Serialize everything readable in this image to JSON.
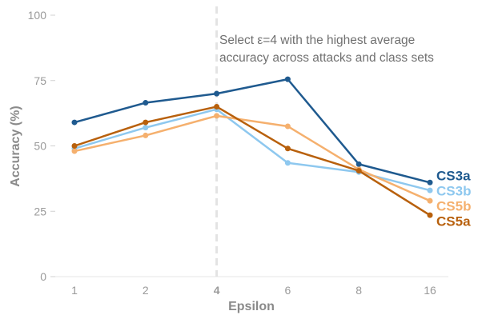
{
  "chart_data": {
    "type": "line",
    "xlabel": "Epsilon",
    "ylabel": "Accuracy (%)",
    "categories": [
      "1",
      "2",
      "4",
      "6",
      "8",
      "16"
    ],
    "ylim": [
      0,
      100
    ],
    "yticks": [
      "0",
      "25",
      "50",
      "75",
      "100"
    ],
    "grid": false,
    "highlighted_category": "4",
    "annotation": {
      "line1": "Select ε=4 with the highest average",
      "line2": "accuracy across attacks and class sets"
    },
    "series": [
      {
        "name": "CS3a",
        "color": "#1f5a8f",
        "values": [
          59,
          66.5,
          70,
          75.5,
          43,
          36
        ]
      },
      {
        "name": "CS3b",
        "color": "#8ec8ef",
        "values": [
          49,
          57,
          64,
          43.5,
          40,
          33
        ]
      },
      {
        "name": "CS5b",
        "color": "#f5b06e",
        "values": [
          48,
          54,
          61.5,
          57.5,
          41,
          29
        ]
      },
      {
        "name": "CS5a",
        "color": "#b8600c",
        "values": [
          50,
          59,
          65,
          49,
          40.5,
          23.5
        ]
      }
    ],
    "legend_position": "right, at line ends"
  }
}
